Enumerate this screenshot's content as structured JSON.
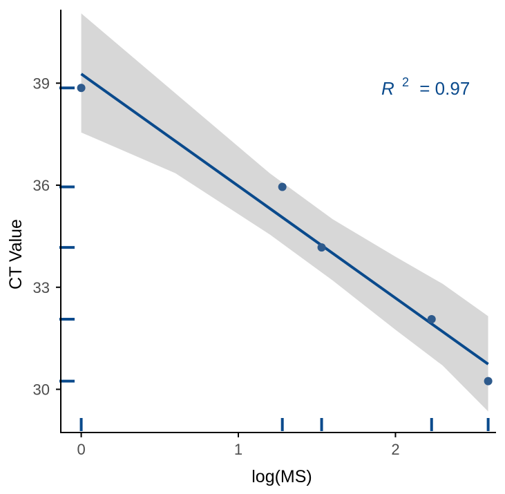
{
  "chart_data": {
    "type": "scatter",
    "xlabel": "log(MS)",
    "ylabel": "CT Value",
    "xlim": [
      -0.13,
      2.64
    ],
    "ylim": [
      28.73,
      41.16
    ],
    "x_ticks": [
      "0",
      "1",
      "2"
    ],
    "y_ticks": [
      "30",
      "33",
      "36",
      "39"
    ],
    "points": [
      {
        "x": 0.0,
        "y": 38.86
      },
      {
        "x": 1.28,
        "y": 35.95
      },
      {
        "x": 1.53,
        "y": 34.17
      },
      {
        "x": 2.23,
        "y": 32.06
      },
      {
        "x": 2.59,
        "y": 30.24
      }
    ],
    "fit_line": {
      "x": [
        0.0,
        2.59
      ],
      "y": [
        39.27,
        30.74
      ]
    },
    "confidence_band": {
      "x": [
        0.0,
        0.6,
        1.2,
        1.6,
        2.0,
        2.3,
        2.59
      ],
      "upper": [
        41.05,
        38.7,
        36.35,
        35.0,
        33.9,
        33.1,
        32.15
      ],
      "lower": [
        37.55,
        36.35,
        34.55,
        33.2,
        31.75,
        30.7,
        29.35
      ]
    },
    "rug": {
      "x": [
        0.0,
        1.28,
        1.53,
        2.23,
        2.59
      ],
      "y": [
        38.86,
        35.95,
        34.17,
        32.06,
        30.24
      ]
    },
    "annotation": {
      "symbol": "R",
      "superscript": "2",
      "text": "= 0.97"
    },
    "colors": {
      "line": "#0a4a8c",
      "points": "#2e5a8c",
      "band": "#d7d7d7",
      "rug": "#0a4a8c",
      "annotation": "#0a4a8c",
      "axis": "#000000"
    }
  }
}
